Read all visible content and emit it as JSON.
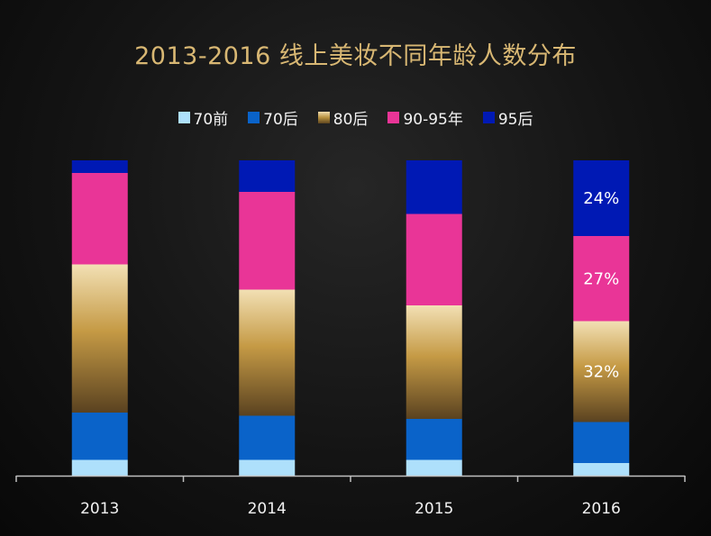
{
  "chart_data": {
    "type": "bar",
    "stacked": true,
    "normalized": true,
    "title": "2013-2016 线上美妆不同年龄人数分布",
    "categories": [
      "2013",
      "2014",
      "2015",
      "2016"
    ],
    "series": [
      {
        "name": "70前",
        "color": "#aee0fb",
        "values": [
          5,
          5,
          5,
          4
        ]
      },
      {
        "name": "70后",
        "color": "#0a63c9",
        "values": [
          15,
          14,
          13,
          13
        ]
      },
      {
        "name": "80后",
        "color": "gold-gradient",
        "values": [
          47,
          40,
          36,
          32
        ]
      },
      {
        "name": "90-95年",
        "color": "#e93597",
        "values": [
          29,
          31,
          29,
          27
        ]
      },
      {
        "name": "95后",
        "color": "#0019b4",
        "values": [
          4,
          10,
          17,
          24
        ]
      }
    ],
    "data_labels": [
      {
        "category": "2016",
        "series": "95后",
        "text": "24%"
      },
      {
        "category": "2016",
        "series": "90-95年",
        "text": "27%"
      },
      {
        "category": "2016",
        "series": "80后",
        "text": "32%"
      }
    ],
    "ylim": [
      0,
      100
    ],
    "xlabel": "",
    "ylabel": "",
    "grid": false,
    "legend_position": "top"
  }
}
